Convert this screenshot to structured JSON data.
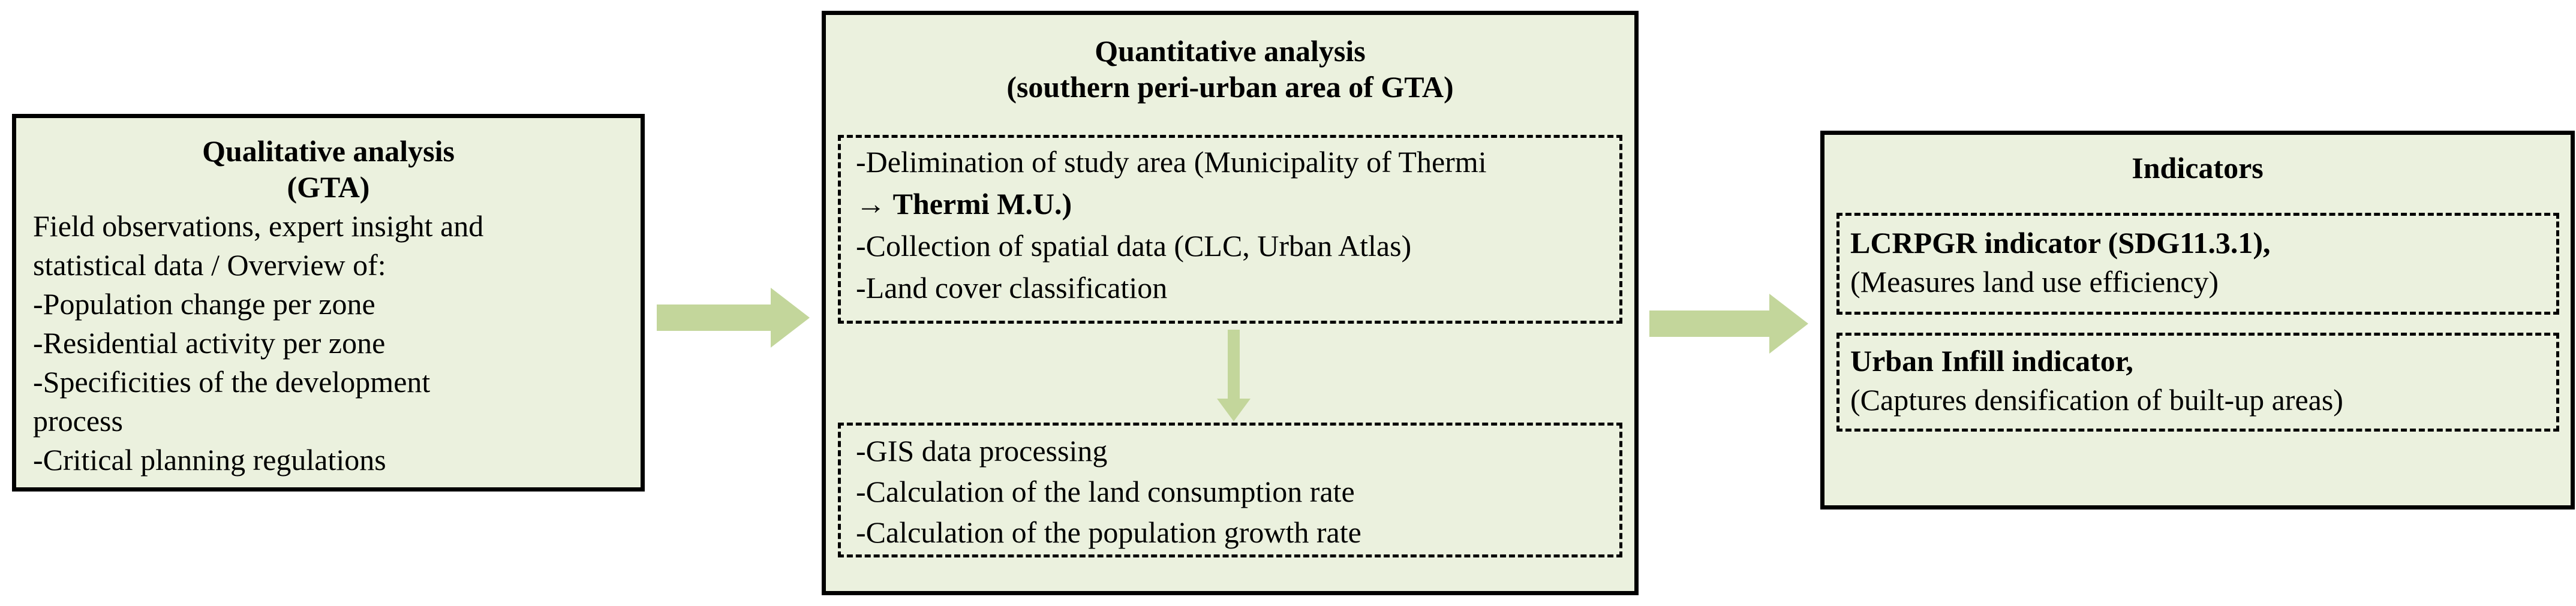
{
  "colors": {
    "box_fill": "#ebf1de",
    "border": "#000000",
    "arrow": "#c3d69b"
  },
  "qualitative": {
    "title_line1": "Qualitative analysis",
    "title_line2": "(GTA)",
    "lines": [
      "Field observations, expert insight and",
      "statistical data / Overview of:",
      "-Population change  per zone",
      "-Residential activity per zone",
      "-Specificities of the development",
      "process",
      "-Critical planning regulations"
    ]
  },
  "quantitative": {
    "title_line1": "Quantitative analysis",
    "title_line2": "(southern peri-urban area of GTA)",
    "top_group": [
      "-Delimination of study area (Municipality of Thermi",
      "→ Thermi M.U.)",
      "-Collection of spatial data (CLC, Urban Atlas)",
      "-Land cover classification"
    ],
    "bottom_group": [
      "-GIS data processing",
      "-Calculation of the land consumption rate",
      "-Calculation of the population growth rate"
    ]
  },
  "indicators": {
    "title": "Indicators",
    "item1_name": "LCRPGR indicator (SDG11.3.1),",
    "item1_desc": "(Measures land use efficiency)",
    "item2_name": "Urban Infill indicator,",
    "item2_desc": "(Captures densification of built-up areas)"
  }
}
